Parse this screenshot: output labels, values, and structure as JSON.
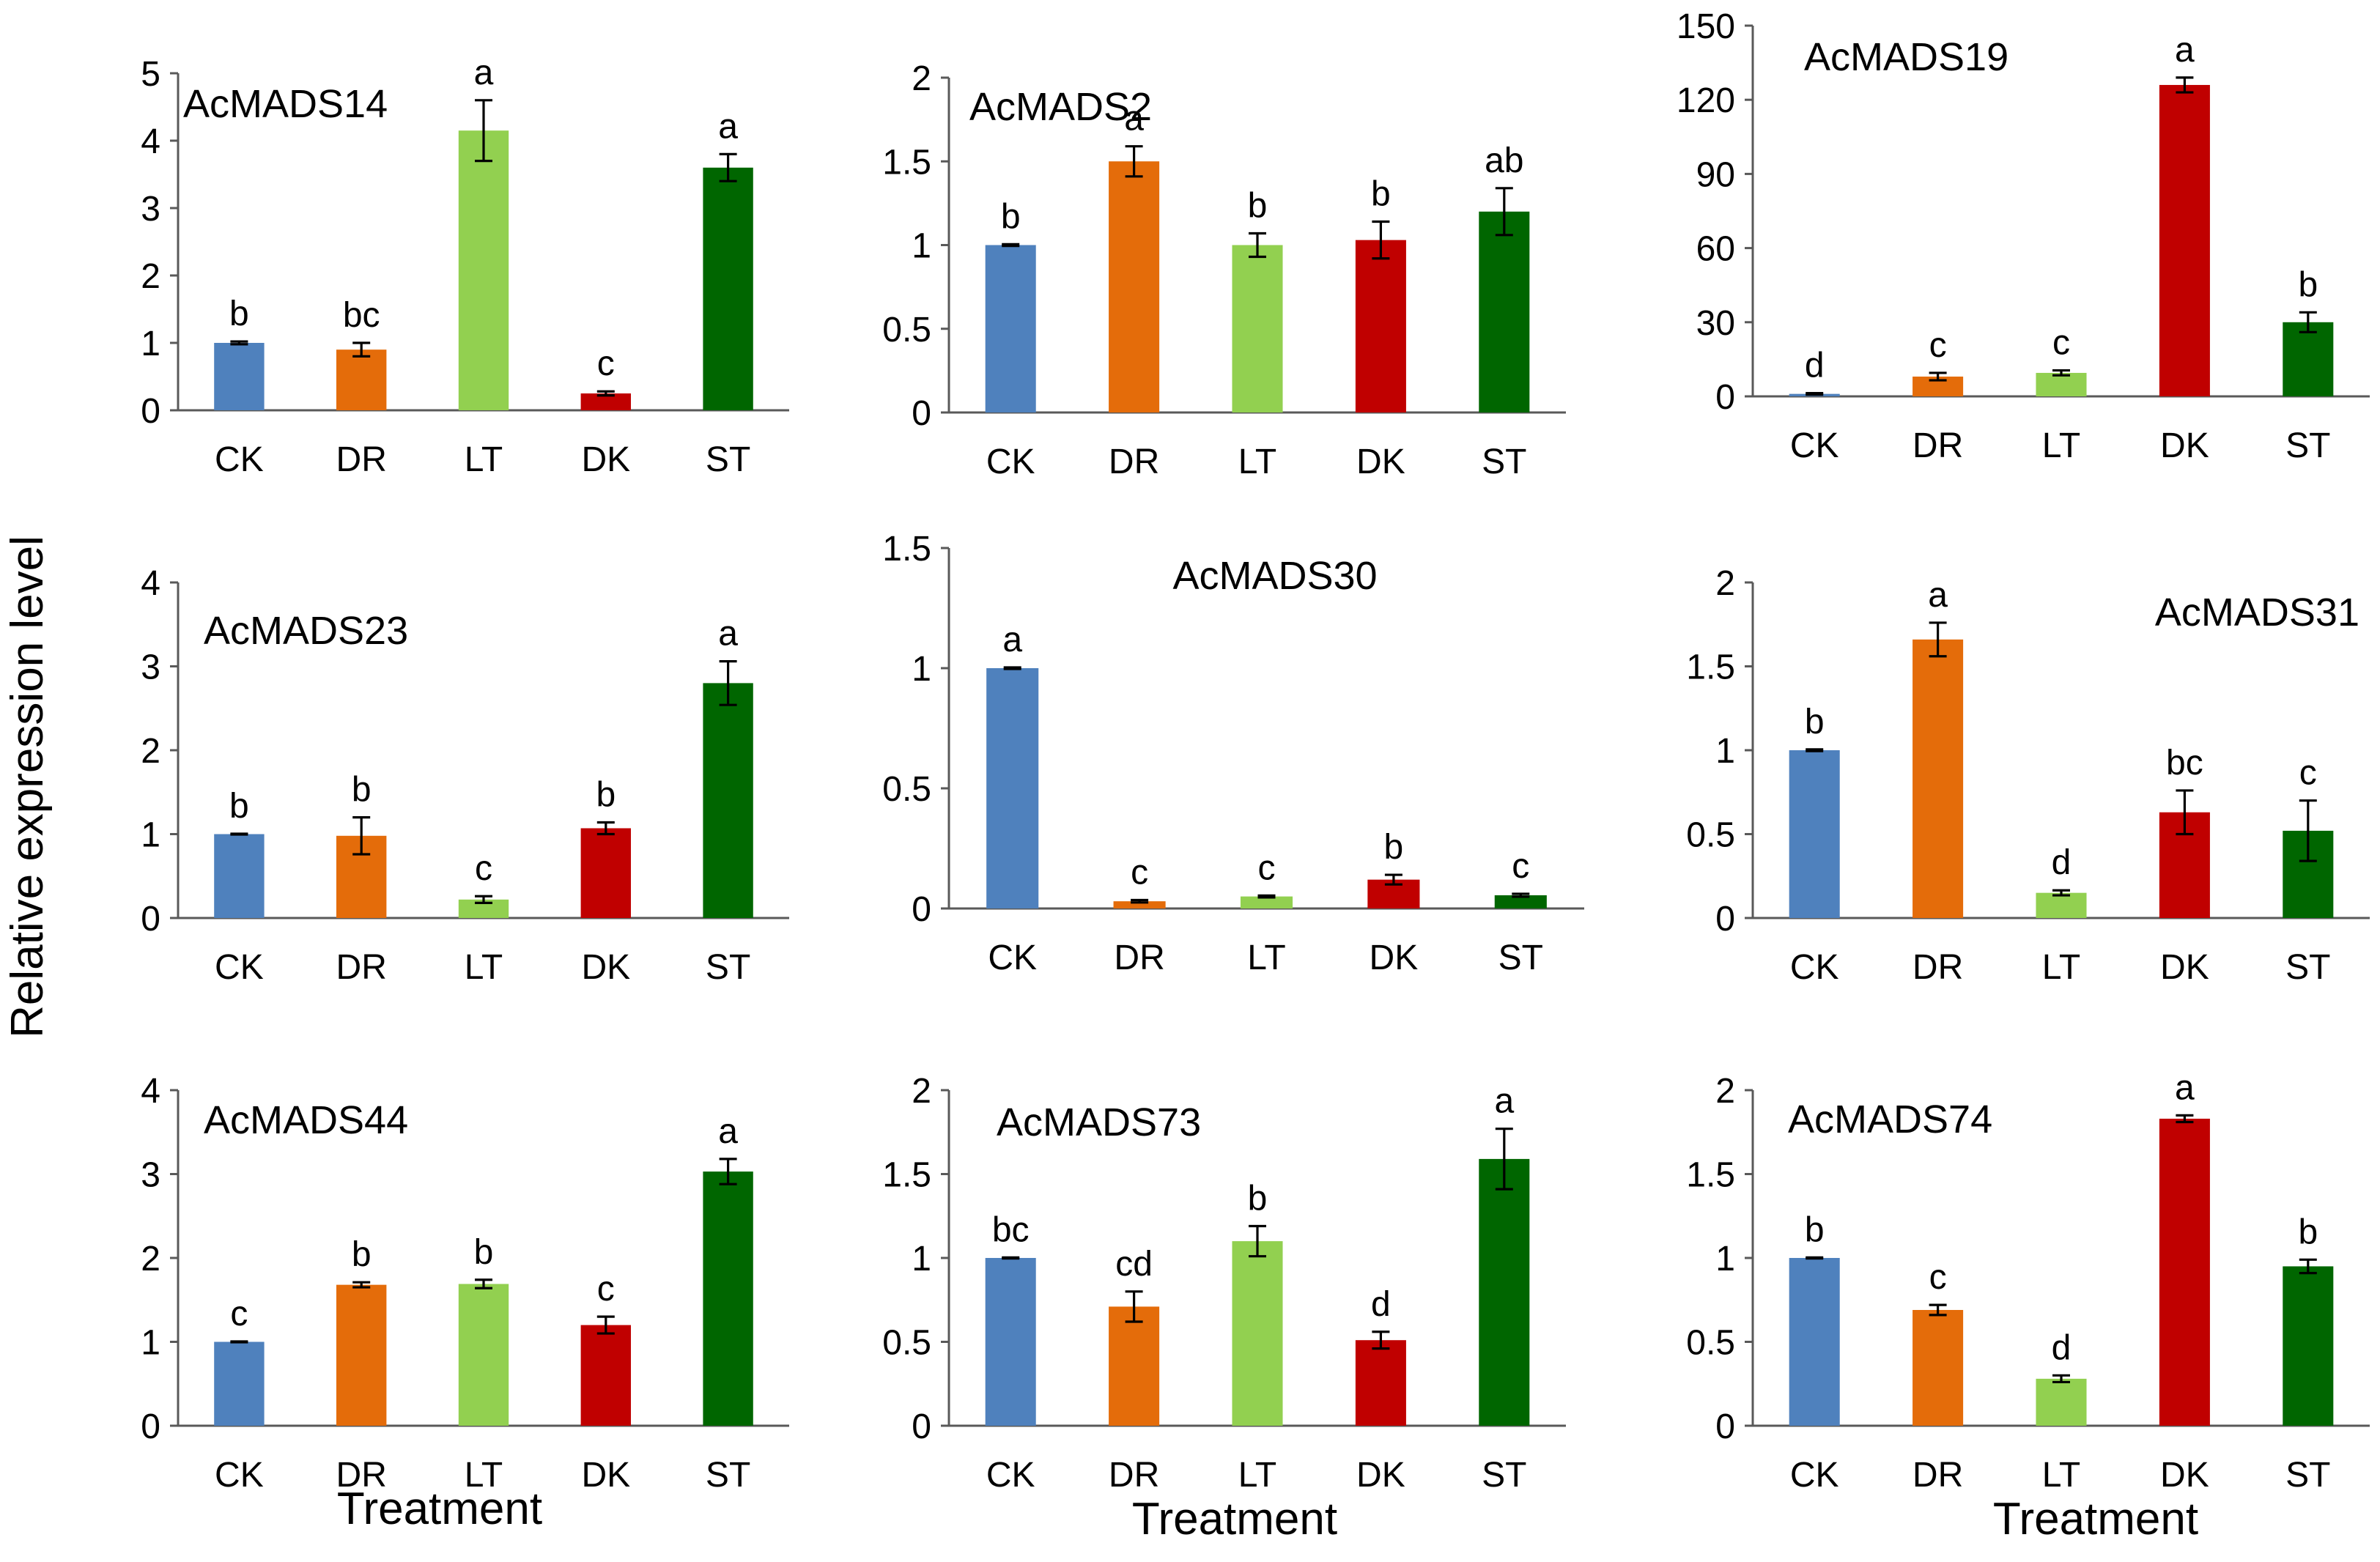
{
  "figure": {
    "ylabel": "Relative expression level",
    "xlabel": "Treatment",
    "colors": {
      "CK": "#4f81bd",
      "DR": "#e46c0a",
      "LT": "#92d050",
      "DK": "#c00000",
      "ST": "#006600"
    }
  },
  "chart_data": [
    {
      "type": "bar",
      "title": "AcMADS14",
      "categories": [
        "CK",
        "DR",
        "LT",
        "DK",
        "ST"
      ],
      "values": [
        1.0,
        0.9,
        4.15,
        0.25,
        3.6
      ],
      "errors": [
        0.02,
        0.1,
        0.45,
        0.03,
        0.2
      ],
      "labels": [
        "b",
        "bc",
        "a",
        "c",
        "a"
      ],
      "ylim": [
        0,
        5
      ],
      "yticks": [
        0,
        1,
        2,
        3,
        4,
        5
      ],
      "xlabel": ""
    },
    {
      "type": "bar",
      "title": "AcMADS2",
      "categories": [
        "CK",
        "DR",
        "LT",
        "DK",
        "ST"
      ],
      "values": [
        1.0,
        1.5,
        1.0,
        1.03,
        1.2
      ],
      "errors": [
        0.005,
        0.09,
        0.07,
        0.11,
        0.14
      ],
      "labels": [
        "b",
        "a",
        "b",
        "b",
        "ab"
      ],
      "ylim": [
        0,
        2
      ],
      "yticks": [
        0,
        0.5,
        1,
        1.5,
        2
      ],
      "xlabel": ""
    },
    {
      "type": "bar",
      "title": "AcMADS19",
      "categories": [
        "CK",
        "DR",
        "LT",
        "DK",
        "ST"
      ],
      "values": [
        1,
        8,
        9.5,
        126,
        30
      ],
      "errors": [
        0.3,
        1.5,
        1,
        3,
        4
      ],
      "labels": [
        "d",
        "c",
        "c",
        "a",
        "b"
      ],
      "ylim": [
        0,
        150
      ],
      "yticks": [
        0,
        30,
        60,
        90,
        120,
        150
      ],
      "xlabel": ""
    },
    {
      "type": "bar",
      "title": "AcMADS23",
      "categories": [
        "CK",
        "DR",
        "LT",
        "DK",
        "ST"
      ],
      "values": [
        1.0,
        0.98,
        0.22,
        1.07,
        2.8
      ],
      "errors": [
        0.005,
        0.22,
        0.04,
        0.07,
        0.26
      ],
      "labels": [
        "b",
        "b",
        "c",
        "b",
        "a"
      ],
      "ylim": [
        0,
        4
      ],
      "yticks": [
        0,
        1,
        2,
        3,
        4
      ],
      "xlabel": ""
    },
    {
      "type": "bar",
      "title": "AcMADS30",
      "categories": [
        "CK",
        "DR",
        "LT",
        "DK",
        "ST"
      ],
      "values": [
        1.0,
        0.03,
        0.05,
        0.12,
        0.055
      ],
      "errors": [
        0.003,
        0.005,
        0.004,
        0.02,
        0.006
      ],
      "labels": [
        "a",
        "c",
        "c",
        "b",
        "c"
      ],
      "ylim": [
        0,
        1.5
      ],
      "yticks": [
        0,
        0.5,
        1,
        1.5
      ],
      "xlabel": ""
    },
    {
      "type": "bar",
      "title": "AcMADS31",
      "categories": [
        "CK",
        "DR",
        "LT",
        "DK",
        "ST"
      ],
      "values": [
        1.0,
        1.66,
        0.15,
        0.63,
        0.52
      ],
      "errors": [
        0.005,
        0.1,
        0.015,
        0.13,
        0.18
      ],
      "labels": [
        "b",
        "a",
        "d",
        "bc",
        "c"
      ],
      "ylim": [
        0,
        2
      ],
      "yticks": [
        0,
        0.5,
        1,
        1.5,
        2
      ],
      "xlabel": ""
    },
    {
      "type": "bar",
      "title": "AcMADS44",
      "categories": [
        "CK",
        "DR",
        "LT",
        "DK",
        "ST"
      ],
      "values": [
        1.0,
        1.68,
        1.69,
        1.2,
        3.03
      ],
      "errors": [
        0.005,
        0.03,
        0.05,
        0.1,
        0.15
      ],
      "labels": [
        "c",
        "b",
        "b",
        "c",
        "a"
      ],
      "ylim": [
        0,
        4
      ],
      "yticks": [
        0,
        1,
        2,
        3,
        4
      ],
      "xlabel": "Treatment"
    },
    {
      "type": "bar",
      "title": "AcMADS73",
      "categories": [
        "CK",
        "DR",
        "LT",
        "DK",
        "ST"
      ],
      "values": [
        1.0,
        0.71,
        1.1,
        0.51,
        1.59
      ],
      "errors": [
        0.003,
        0.09,
        0.09,
        0.05,
        0.18
      ],
      "labels": [
        "bc",
        "cd",
        "b",
        "d",
        "a"
      ],
      "ylim": [
        0,
        2
      ],
      "yticks": [
        0,
        0.5,
        1,
        1.5,
        2
      ],
      "xlabel": "Treatment"
    },
    {
      "type": "bar",
      "title": "AcMADS74",
      "categories": [
        "CK",
        "DR",
        "LT",
        "DK",
        "ST"
      ],
      "values": [
        1.0,
        0.69,
        0.28,
        1.83,
        0.95
      ],
      "errors": [
        0.003,
        0.03,
        0.02,
        0.02,
        0.04
      ],
      "labels": [
        "b",
        "c",
        "d",
        "a",
        "b"
      ],
      "ylim": [
        0,
        2
      ],
      "yticks": [
        0,
        0.5,
        1,
        1.5,
        2
      ],
      "xlabel": "Treatment"
    }
  ]
}
